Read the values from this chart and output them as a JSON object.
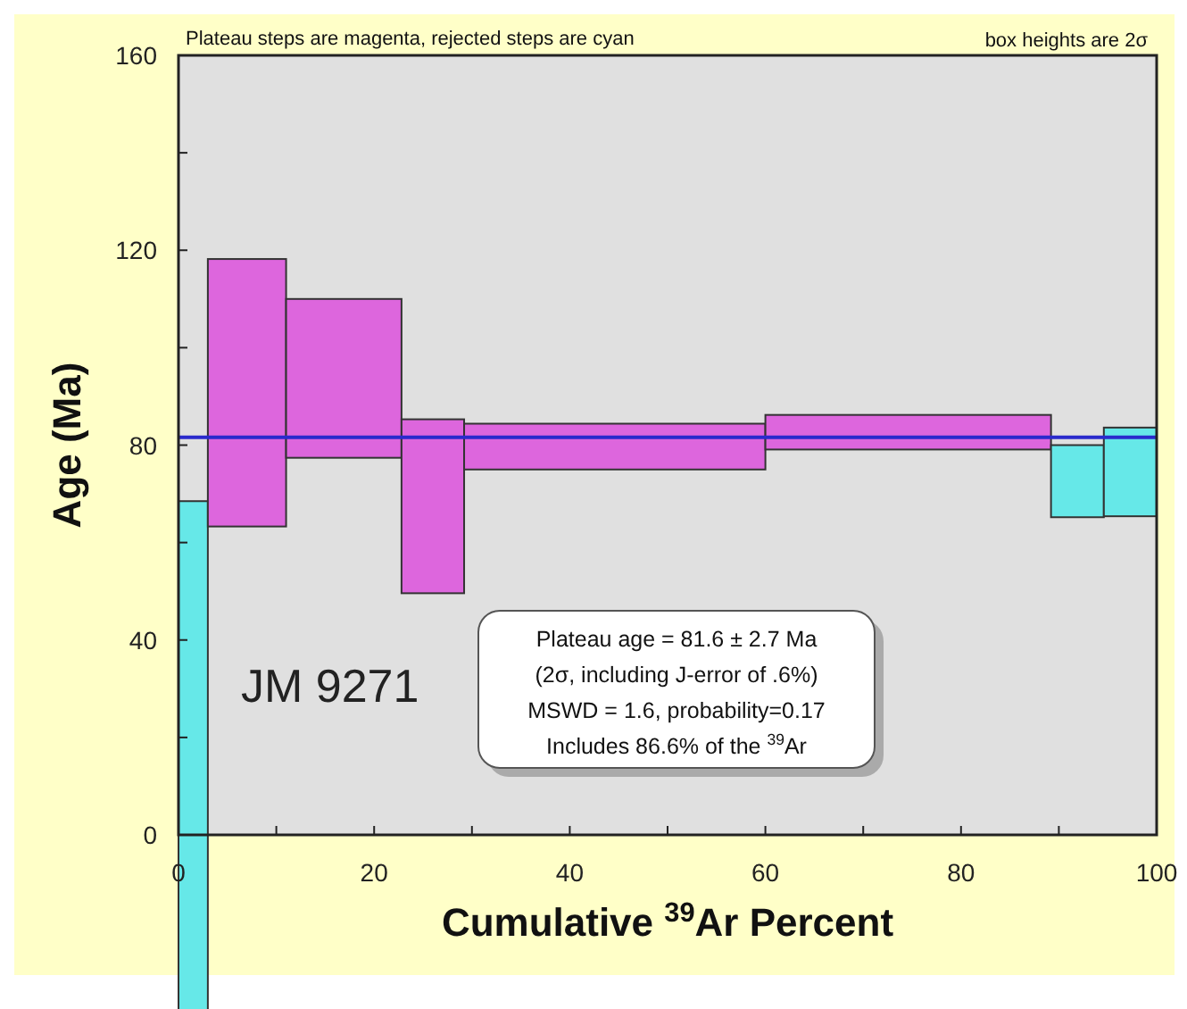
{
  "chart_data": {
    "type": "histogram",
    "xlabel": "Cumulative $^{39}$Ar Percent",
    "ylabel": "Age (Ma)",
    "bins": [
      0,
      3,
      11,
      22.8,
      29.2,
      60,
      89.2,
      94.6,
      100
    ],
    "base": [
      -36,
      63.3,
      77.4,
      49.6,
      75,
      79.1,
      65.2,
      65.4
    ],
    "values": [
      104.5,
      54.9,
      32.6,
      35.7,
      9.4,
      7.1,
      14.8,
      18.2
    ],
    "colors": [
      "#66e8e8",
      "#dd66dd",
      "#dd66dd",
      "#dd66dd",
      "#dd66dd",
      "#dd66dd",
      "#66e8e8",
      "#66e8e8"
    ],
    "xlim": [
      0,
      100
    ],
    "ylim": [
      0,
      160
    ],
    "xticks": [
      0,
      {
        "value": 10,
        "label": null
      },
      20,
      {
        "value": 30,
        "label": null
      },
      40,
      {
        "value": 50,
        "label": null
      },
      60,
      {
        "value": 70,
        "label": null
      },
      80,
      {
        "value": 90,
        "label": null
      },
      100
    ],
    "yticks": [
      0,
      {
        "value": 20,
        "label": null
      },
      40,
      {
        "value": 60,
        "label": null
      },
      80,
      {
        "value": 100,
        "label": null
      },
      120,
      {
        "value": 140,
        "label": null
      },
      160
    ],
    "grid": false,
    "ref_lines": [
      {
        "axis": "y",
        "value": 81.6,
        "color": "#2a2acc"
      }
    ],
    "annotations": [
      "Plateau steps are magenta, rejected steps are cyan",
      "box heights are 2σ",
      "JM 9271",
      "Plateau age = 81.6 ± 2.7 Ma\n(2σ, including J-error of .6%)\nMSWD = 1.6, probability=0.17\nIncludes 86.6% of the $^{39}$Ar"
    ]
  }
}
